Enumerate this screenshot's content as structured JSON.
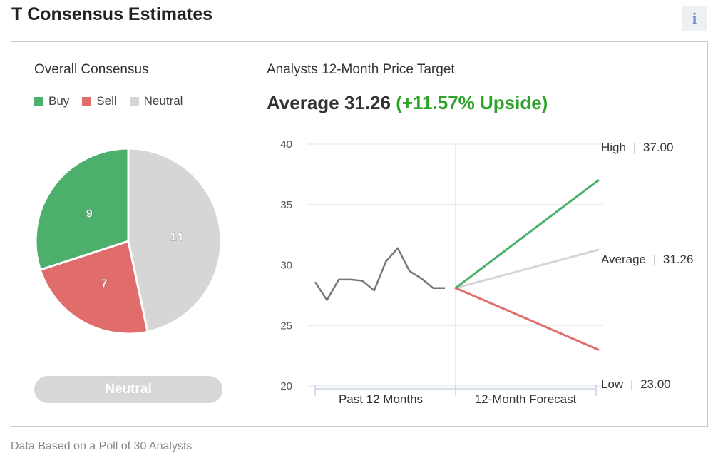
{
  "page": {
    "title": "T Consensus Estimates",
    "info_icon": "i",
    "footer": "Data Based on a Poll of 30 Analysts"
  },
  "consensus": {
    "heading": "Overall Consensus",
    "legend": [
      {
        "label": "Buy",
        "color": "#4caf6b"
      },
      {
        "label": "Sell",
        "color": "#e06c6c"
      },
      {
        "label": "Neutral",
        "color": "#d6d6d6"
      }
    ],
    "rating": "Neutral"
  },
  "target": {
    "heading": "Analysts 12-Month Price Target",
    "average_prefix": "Average 31.26",
    "upside": "(+11.57% Upside)",
    "x_labels": [
      "Past 12 Months",
      "12-Month Forecast"
    ],
    "high_label": "High",
    "high_value": "37.00",
    "average_label": "Average",
    "average_value": "31.26",
    "low_label": "Low",
    "low_value": "23.00",
    "separator": "|"
  },
  "chart_data": [
    {
      "type": "pie",
      "categories": [
        "Buy",
        "Sell",
        "Neutral"
      ],
      "values": [
        9,
        7,
        14
      ],
      "colors": [
        "#4caf6b",
        "#e06c6c",
        "#d6d6d6"
      ],
      "title": "Overall Consensus",
      "legend": "top-left"
    },
    {
      "type": "line",
      "title": "Analysts 12-Month Price Target",
      "ylim": [
        20,
        40
      ],
      "yticks": [
        20,
        25,
        30,
        35,
        40
      ],
      "grid": true,
      "series": [
        {
          "values": [
            28.6,
            27.1,
            28.8,
            28.8,
            28.7,
            27.9,
            30.3,
            31.4,
            29.5,
            28.9,
            28.1,
            28.1
          ],
          "color": "#777777"
        },
        {
          "name": "High",
          "values": [
            28.1,
            37.0
          ],
          "color": "#4caf6b"
        },
        {
          "name": "Average",
          "values": [
            28.1,
            31.26
          ],
          "color": "#d6d6d6"
        },
        {
          "name": "Low",
          "values": [
            28.1,
            23.0
          ],
          "color": "#e06c6c"
        }
      ]
    }
  ]
}
